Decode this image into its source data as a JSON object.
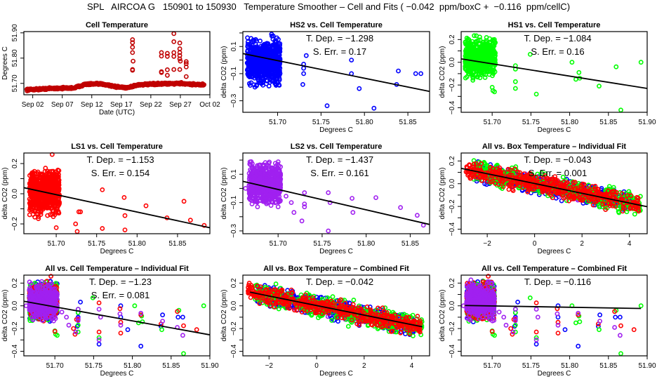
{
  "figure_title": "SPL   AIRCOA G   150901 to 150930   Temperature Smoother – Cell and Fits ( −0.042  ppm/boxC +  −0.116  ppm/cellC)",
  "colors": {
    "hs2": "#0000ff",
    "hs1": "#00ff00",
    "ls1": "#ff0000",
    "ls2": "#a020f0",
    "cell": "#c00000",
    "fit": "#000000"
  },
  "chart_data": [
    {
      "id": "cell-temp",
      "type": "scatter",
      "title": "Cell Temperature",
      "xlabel": "Date (UTC)",
      "ylabel": "Degrees C",
      "xticks": [
        "Sep 02",
        "Sep 07",
        "Sep 12",
        "Sep 17",
        "Sep 22",
        "Sep 27",
        "Oct 02"
      ],
      "xtick_days": [
        2,
        7,
        12,
        17,
        22,
        27,
        32
      ],
      "xlim": [
        0.5,
        32.0
      ],
      "ylim": [
        51.655,
        51.905
      ],
      "yticks": [
        51.7,
        51.8,
        51.9
      ],
      "ytick_labels": [
        "51.70",
        "51.80",
        "51.90"
      ],
      "series": [
        {
          "name": "cell",
          "color_key": "cell",
          "baseline": [
            [
              1,
              51.675
            ],
            [
              3,
              51.677
            ],
            [
              5,
              51.68
            ],
            [
              9,
              51.682
            ],
            [
              11,
              51.697
            ],
            [
              14,
              51.697
            ],
            [
              16,
              51.687
            ],
            [
              18,
              51.683
            ],
            [
              20,
              51.695
            ],
            [
              24,
              51.698
            ],
            [
              27,
              51.7
            ],
            [
              30,
              51.695
            ],
            [
              31,
              51.695
            ]
          ],
          "outliers": [
            [
              18.9,
              51.873
            ],
            [
              18.9,
              51.861
            ],
            [
              18.9,
              51.843
            ],
            [
              18.9,
              51.822
            ],
            [
              19.0,
              51.788
            ],
            [
              18.9,
              51.755
            ],
            [
              18.9,
              51.752
            ],
            [
              23.8,
              51.822
            ],
            [
              23.8,
              51.808
            ],
            [
              23.8,
              51.746
            ],
            [
              23.8,
              51.743
            ],
            [
              24.8,
              51.819
            ],
            [
              24.8,
              51.807
            ],
            [
              24.8,
              51.732
            ],
            [
              24.8,
              51.754
            ],
            [
              25.9,
              51.897
            ],
            [
              25.9,
              51.865
            ],
            [
              25.9,
              51.822
            ],
            [
              25.9,
              51.807
            ],
            [
              25.9,
              51.755
            ],
            [
              26.9,
              51.86
            ],
            [
              26.9,
              51.837
            ],
            [
              26.9,
              51.822
            ],
            [
              26.9,
              51.81
            ],
            [
              26.9,
              51.797
            ],
            [
              26.9,
              51.755
            ],
            [
              27,
              51.788
            ],
            [
              28,
              51.786
            ],
            [
              28,
              51.778
            ],
            [
              28,
              51.765
            ],
            [
              28,
              51.727
            ]
          ]
        }
      ]
    },
    {
      "id": "hs2",
      "type": "scatter",
      "title": "HS2 vs. Cell Temperature",
      "xlabel": "Degrees C",
      "ylabel": "delta CO2 (ppm)",
      "xlim": [
        51.66,
        51.875
      ],
      "ylim": [
        -0.385,
        0.21
      ],
      "xticks": [
        51.7,
        51.75,
        51.8,
        51.85
      ],
      "xtick_labels": [
        "51.70",
        "51.75",
        "51.80",
        "51.85"
      ],
      "yticks": [
        -0.3,
        -0.2,
        -0.1,
        0.0,
        0.1,
        0.2
      ],
      "ytick_labels": [
        "−0.3",
        "",
        "−0.1",
        "",
        "0.1",
        ""
      ],
      "annotation": [
        "T. Dep. =  −1.298",
        "S. Err. =  0.17"
      ],
      "fit": {
        "slope": -1.298,
        "x0": 51.66,
        "y0": 0.048
      },
      "series": [
        {
          "name": "HS2",
          "color_key": "hs2",
          "cluster": {
            "x": [
              51.665,
              51.703
            ],
            "y": [
              -0.24,
              0.21
            ]
          },
          "outliers": [
            [
              51.729,
              -0.18
            ],
            [
              51.73,
              -0.03
            ],
            [
              51.73,
              -0.06
            ],
            [
              51.73,
              -0.1
            ],
            [
              51.733,
              0.033
            ],
            [
              51.757,
              -0.337
            ],
            [
              51.785,
              0.0
            ],
            [
              51.785,
              -0.1
            ],
            [
              51.794,
              -0.21
            ],
            [
              51.811,
              -0.355
            ],
            [
              51.837,
              -0.18
            ],
            [
              51.839,
              -0.08
            ],
            [
              51.859,
              -0.1
            ],
            [
              51.865,
              -0.1
            ]
          ]
        }
      ]
    },
    {
      "id": "hs1",
      "type": "scatter",
      "title": "HS1 vs. Cell Temperature",
      "xlabel": "Degrees C",
      "ylabel": "delta CO2 (ppm)",
      "xlim": [
        51.66,
        51.9
      ],
      "ylim": [
        -0.44,
        0.27
      ],
      "xticks": [
        51.7,
        51.75,
        51.8,
        51.85,
        51.9
      ],
      "xtick_labels": [
        "51.70",
        "51.75",
        "51.80",
        "51.85",
        "51.90"
      ],
      "yticks": [
        -0.4,
        -0.3,
        -0.2,
        -0.1,
        0.0,
        0.1,
        0.2
      ],
      "ytick_labels": [
        "−0.4",
        "",
        "−0.2",
        "",
        "0.0",
        "",
        "0.2"
      ],
      "annotation": [
        "T. Dep. =  −1.084",
        "S. Err. =  0.16"
      ],
      "fit": {
        "slope": -1.084,
        "x0": 51.66,
        "y0": 0.03
      },
      "series": [
        {
          "name": "HS1",
          "color_key": "hs1",
          "cluster": {
            "x": [
              51.665,
              51.704
            ],
            "y": [
              -0.17,
              0.25
            ]
          },
          "outliers": [
            [
              51.7,
              -0.22
            ],
            [
              51.701,
              -0.25
            ],
            [
              51.703,
              -0.26
            ],
            [
              51.73,
              -0.03
            ],
            [
              51.73,
              -0.06
            ],
            [
              51.73,
              -0.17
            ],
            [
              51.73,
              -0.23
            ],
            [
              51.749,
              0.07
            ],
            [
              51.757,
              -0.28
            ],
            [
              51.803,
              0.0
            ],
            [
              51.808,
              -0.15
            ],
            [
              51.812,
              -0.09
            ],
            [
              51.813,
              -0.14
            ],
            [
              51.838,
              -0.21
            ],
            [
              51.86,
              -0.04
            ],
            [
              51.866,
              -0.42
            ],
            [
              51.892,
              0.0
            ]
          ]
        }
      ]
    },
    {
      "id": "ls1",
      "type": "scatter",
      "title": "LS1 vs. Cell Temperature",
      "xlabel": "Degrees C",
      "ylabel": "delta CO2 (ppm)",
      "xlim": [
        51.66,
        51.89
      ],
      "ylim": [
        -0.265,
        0.27
      ],
      "xticks": [
        51.7,
        51.75,
        51.8,
        51.85
      ],
      "xtick_labels": [
        "51.70",
        "51.75",
        "51.80",
        "51.85"
      ],
      "yticks": [
        -0.2,
        -0.1,
        0.0,
        0.1,
        0.2
      ],
      "ytick_labels": [
        "−0.2",
        "",
        "0.0",
        "",
        "0.2"
      ],
      "annotation": [
        "T. Dep. =  −1.153",
        "S. Err. =  0.154"
      ],
      "fit": {
        "slope": -1.153,
        "x0": 51.66,
        "y0": 0.04
      },
      "series": [
        {
          "name": "LS1",
          "color_key": "ls1",
          "cluster": {
            "x": [
              51.667,
              51.704
            ],
            "y": [
              -0.18,
              0.2
            ]
          },
          "outliers": [
            [
              51.695,
              0.26
            ],
            [
              51.7,
              -0.225
            ],
            [
              51.724,
              -0.2
            ],
            [
              51.726,
              -0.25
            ],
            [
              51.728,
              -0.12
            ],
            [
              51.73,
              -0.12
            ],
            [
              51.757,
              0.026
            ],
            [
              51.757,
              -0.23
            ],
            [
              51.784,
              -0.025
            ],
            [
              51.785,
              -0.145
            ],
            [
              51.785,
              -0.24
            ],
            [
              51.811,
              -0.08
            ],
            [
              51.837,
              -0.16
            ],
            [
              51.858,
              -0.05
            ],
            [
              51.866,
              -0.175
            ],
            [
              51.883,
              -0.21
            ]
          ]
        }
      ]
    },
    {
      "id": "ls2",
      "type": "scatter",
      "title": "LS2 vs. Cell Temperature",
      "xlabel": "Degrees C",
      "ylabel": "delta CO2 (ppm)",
      "xlim": [
        51.66,
        51.872
      ],
      "ylim": [
        -0.32,
        0.25
      ],
      "xticks": [
        51.7,
        51.75,
        51.8,
        51.85
      ],
      "xtick_labels": [
        "51.70",
        "51.75",
        "51.80",
        "51.85"
      ],
      "yticks": [
        -0.3,
        -0.2,
        -0.1,
        0.0,
        0.1,
        0.2
      ],
      "ytick_labels": [
        "−0.3",
        "",
        "−0.1",
        "",
        "0.1",
        ""
      ],
      "annotation": [
        "T. Dep. =  −1.437",
        "S. Err. =  0.161"
      ],
      "fit": {
        "slope": -1.437,
        "x0": 51.66,
        "y0": 0.05
      },
      "series": [
        {
          "name": "LS2",
          "color_key": "ls2",
          "cluster": {
            "x": [
              51.667,
              51.703
            ],
            "y": [
              -0.15,
              0.22
            ]
          },
          "outliers": [
            [
              51.663,
              0.0
            ],
            [
              51.709,
              -0.055
            ],
            [
              51.715,
              -0.1
            ],
            [
              51.718,
              -0.17
            ],
            [
              51.727,
              -0.23
            ],
            [
              51.73,
              -0.03
            ],
            [
              51.73,
              -0.11
            ],
            [
              51.73,
              -0.13
            ],
            [
              51.757,
              -0.03
            ],
            [
              51.757,
              -0.3
            ],
            [
              51.759,
              -0.1
            ],
            [
              51.784,
              -0.07
            ],
            [
              51.785,
              -0.17
            ],
            [
              51.811,
              -0.065
            ],
            [
              51.839,
              -0.135
            ],
            [
              51.858,
              -0.19
            ],
            [
              51.865,
              -0.26
            ]
          ]
        }
      ]
    },
    {
      "id": "all-box-ind",
      "type": "scatter",
      "title": "All vs. Box Temperature – Individual Fit",
      "xlabel": "Degrees C",
      "ylabel": "delta CO2 (ppm)",
      "xlim": [
        -3.1,
        4.75
      ],
      "ylim": [
        -0.44,
        0.27
      ],
      "xticks": [
        -2,
        0,
        2,
        4
      ],
      "xtick_labels": [
        "−2",
        "0",
        "2",
        "4"
      ],
      "yticks": [
        -0.4,
        -0.3,
        -0.2,
        -0.1,
        0.0,
        0.1,
        0.2
      ],
      "ytick_labels": [
        "−0.4",
        "",
        "−0.2",
        "",
        "0.0",
        "",
        "0.2"
      ],
      "annotation": [
        "T. Dep. =  −0.043",
        "S. Err. =  0.001"
      ],
      "fit": {
        "slope": -0.043,
        "x0": -3.1,
        "y0": 0.135
      },
      "series": [
        {
          "name": "LS2",
          "color_key": "ls2",
          "band": {
            "x": [
              -2.5,
              2.4
            ],
            "slope": -0.043,
            "spread": 0.09
          }
        },
        {
          "name": "HS2",
          "color_key": "hs2",
          "band": {
            "x": [
              -2.5,
              4.1
            ],
            "slope": -0.043,
            "spread": 0.12
          }
        },
        {
          "name": "HS1",
          "color_key": "hs1",
          "band": {
            "x": [
              -2.6,
              4.5
            ],
            "slope": -0.043,
            "spread": 0.13
          }
        },
        {
          "name": "LS1",
          "color_key": "ls1",
          "band": {
            "x": [
              -2.9,
              4.4
            ],
            "slope": -0.043,
            "spread": 0.12
          }
        }
      ]
    },
    {
      "id": "all-cell-ind",
      "type": "scatter",
      "title": "All vs. Cell Temperature – Individual Fit",
      "xlabel": "Degrees C",
      "ylabel": "delta CO2 (ppm)",
      "xlim": [
        51.66,
        51.9
      ],
      "ylim": [
        -0.44,
        0.27
      ],
      "xticks": [
        51.7,
        51.75,
        51.8,
        51.85,
        51.9
      ],
      "xtick_labels": [
        "51.70",
        "51.75",
        "51.80",
        "51.85",
        "51.90"
      ],
      "yticks": [
        -0.4,
        -0.3,
        -0.2,
        -0.1,
        0.0,
        0.1,
        0.2
      ],
      "ytick_labels": [
        "−0.4",
        "",
        "−0.2",
        "",
        "0.0",
        "",
        "0.2"
      ],
      "annotation": [
        "T. Dep. =  −1.23",
        "S. Err. =  0.081"
      ],
      "fit": {
        "slope": -1.23,
        "x0": 51.66,
        "y0": 0.04
      },
      "series": "combined-cell"
    },
    {
      "id": "all-box-comb",
      "type": "scatter",
      "title": "All vs. Box Temperature – Combined Fit",
      "xlabel": "Degrees C",
      "ylabel": "delta CO2 (ppm)",
      "xlim": [
        -3.1,
        4.75
      ],
      "ylim": [
        -0.44,
        0.27
      ],
      "xticks": [
        -2,
        0,
        2,
        4
      ],
      "xtick_labels": [
        "−2",
        "0",
        "2",
        "4"
      ],
      "yticks": [
        -0.4,
        -0.3,
        -0.2,
        -0.1,
        0.0,
        0.1,
        0.2
      ],
      "ytick_labels": [
        "−0.4",
        "",
        "−0.2",
        "",
        "0.0",
        "",
        "0.2"
      ],
      "annotation": [
        "T. Dep. =  −0.042"
      ],
      "fit": {
        "slope": -0.042,
        "x0": -2.8,
        "y0": 0.12,
        "x1": 4.45
      },
      "series": "combined-box"
    },
    {
      "id": "all-cell-comb",
      "type": "scatter",
      "title": "All vs. Cell Temperature – Combined Fit",
      "xlabel": "Degrees C",
      "ylabel": "delta CO2 (ppm)",
      "xlim": [
        51.66,
        51.9
      ],
      "ylim": [
        -0.44,
        0.27
      ],
      "xticks": [
        51.7,
        51.75,
        51.8,
        51.85,
        51.9
      ],
      "xtick_labels": [
        "51.70",
        "51.75",
        "51.80",
        "51.85",
        "51.90"
      ],
      "yticks": [
        -0.4,
        -0.3,
        -0.2,
        -0.1,
        0.0,
        0.1,
        0.2
      ],
      "ytick_labels": [
        "−0.4",
        "",
        "−0.2",
        "",
        "0.0",
        "",
        "0.2"
      ],
      "annotation": [
        "T. Dep. =  −0.116"
      ],
      "fit": {
        "slope": -0.116,
        "x0": 51.665,
        "y0": 0.003,
        "x1": 51.892
      },
      "series": "combined-cell"
    }
  ]
}
